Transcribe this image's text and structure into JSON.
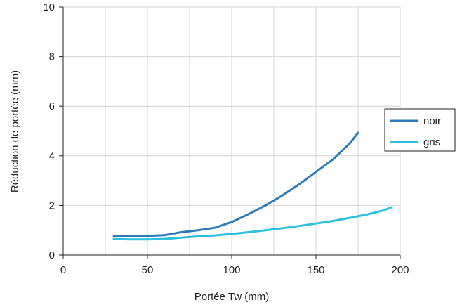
{
  "chart_data": {
    "type": "line",
    "title": "",
    "xlabel": "Portée Tw (mm)",
    "ylabel": "Réduction de portée (mm)",
    "xlim": [
      0,
      200
    ],
    "ylim": [
      0,
      10
    ],
    "xticks": [
      "0",
      "50",
      "100",
      "150",
      "200"
    ],
    "yticks": [
      "0",
      "2",
      "4",
      "6",
      "8",
      "10"
    ],
    "grid": true,
    "legend_position": "right",
    "series": [
      {
        "name": "noir",
        "color": "#2b7bb9",
        "points": [
          [
            30,
            0.75
          ],
          [
            40,
            0.75
          ],
          [
            50,
            0.77
          ],
          [
            60,
            0.8
          ],
          [
            70,
            0.92
          ],
          [
            80,
            1.0
          ],
          [
            90,
            1.1
          ],
          [
            100,
            1.33
          ],
          [
            110,
            1.65
          ],
          [
            120,
            2.0
          ],
          [
            130,
            2.4
          ],
          [
            140,
            2.85
          ],
          [
            150,
            3.35
          ],
          [
            160,
            3.85
          ],
          [
            170,
            4.5
          ],
          [
            175,
            4.93
          ]
        ]
      },
      {
        "name": "gris",
        "color": "#2dbfdc",
        "points": [
          [
            30,
            0.65
          ],
          [
            40,
            0.63
          ],
          [
            50,
            0.63
          ],
          [
            60,
            0.65
          ],
          [
            70,
            0.7
          ],
          [
            80,
            0.75
          ],
          [
            90,
            0.79
          ],
          [
            100,
            0.85
          ],
          [
            110,
            0.92
          ],
          [
            120,
            1.0
          ],
          [
            130,
            1.08
          ],
          [
            140,
            1.17
          ],
          [
            150,
            1.27
          ],
          [
            160,
            1.37
          ],
          [
            170,
            1.5
          ],
          [
            180,
            1.63
          ],
          [
            190,
            1.8
          ],
          [
            195,
            1.93
          ]
        ]
      }
    ]
  }
}
